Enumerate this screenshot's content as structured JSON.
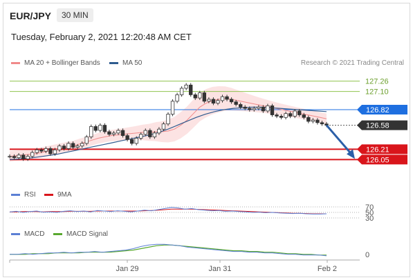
{
  "header": {
    "symbol": "EUR/JPY",
    "timeframe": "30 MIN",
    "datetime": "Tuesday, February 2, 2021 12:20:48 AM CET"
  },
  "legend": {
    "ma20_bb": "MA 20 + Bollinger Bands",
    "ma50": "MA 50",
    "credit": "Research © 2021 Trading Central"
  },
  "colors": {
    "bollinger": "#f08a8a",
    "ma50": "#2f5b8f",
    "resistance": "#8fc24d",
    "support": "#d9151b",
    "pivot": "#1e6fe0",
    "last": "#333333",
    "rsi": "#5b7fd4",
    "rsi_ma": "#d9151b",
    "macd": "#5b7fd4",
    "macd_signal": "#58a82e",
    "arrow": "#2b5fa8"
  },
  "chart_data": [
    {
      "type": "line",
      "title": "EUR/JPY 30 MIN",
      "x_ticks": [
        "Jan 29",
        "Jan 31",
        "Feb 2"
      ],
      "ylim": [
        125.98,
        127.32
      ],
      "levels": [
        {
          "label": "127.26",
          "value": 127.26,
          "kind": "resistance"
        },
        {
          "label": "127.10",
          "value": 127.1,
          "kind": "resistance"
        },
        {
          "label": "126.82",
          "value": 126.82,
          "kind": "pivot"
        },
        {
          "label": "126.58",
          "value": 126.58,
          "kind": "last"
        },
        {
          "label": "126.21",
          "value": 126.21,
          "kind": "support"
        },
        {
          "label": "126.05",
          "value": 126.05,
          "kind": "support"
        }
      ],
      "series": [
        {
          "name": "EUR/JPY",
          "values": [
            126.1,
            126.08,
            126.12,
            126.06,
            126.1,
            126.16,
            126.2,
            126.18,
            126.22,
            126.14,
            126.2,
            126.26,
            126.22,
            126.3,
            126.24,
            126.26,
            126.3,
            126.4,
            126.56,
            126.5,
            126.58,
            126.48,
            126.44,
            126.46,
            126.5,
            126.42,
            126.36,
            126.3,
            126.38,
            126.44,
            126.5,
            126.4,
            126.46,
            126.52,
            126.6,
            126.75,
            126.95,
            127.05,
            127.15,
            127.2,
            127.05,
            127.0,
            127.08,
            126.95,
            126.98,
            126.92,
            126.96,
            127.02,
            126.98,
            126.94,
            126.9,
            126.86,
            126.84,
            126.82,
            126.84,
            126.86,
            126.8,
            126.88,
            126.74,
            126.72,
            126.7,
            126.76,
            126.72,
            126.8,
            126.74,
            126.7,
            126.64,
            126.66,
            126.62,
            126.6,
            126.58
          ]
        },
        {
          "name": "MA 20 + Bollinger Bands",
          "values": [
            126.1,
            126.11,
            126.12,
            126.13,
            126.14,
            126.16,
            126.18,
            126.2,
            126.22,
            126.24,
            126.26,
            126.29,
            126.32,
            126.35,
            126.38,
            126.4,
            126.42,
            126.43,
            126.44,
            126.45,
            126.46,
            126.47,
            126.47,
            126.48,
            126.48,
            126.49,
            126.52,
            126.58,
            126.66,
            126.76,
            126.86,
            126.92,
            126.96,
            126.98,
            126.99,
            126.98,
            126.96,
            126.94,
            126.92,
            126.9,
            126.88,
            126.86,
            126.84,
            126.82,
            126.8,
            126.78,
            126.76,
            126.74,
            126.72,
            126.7,
            126.68
          ]
        },
        {
          "name": "MA 50",
          "values": [
            126.05,
            126.06,
            126.07,
            126.09,
            126.11,
            126.13,
            126.16,
            126.19,
            126.22,
            126.25,
            126.28,
            126.31,
            126.34,
            126.37,
            126.4,
            126.43,
            126.47,
            126.52,
            126.58,
            126.64,
            126.7,
            126.75,
            126.79,
            126.82,
            126.84,
            126.85,
            126.86,
            126.86,
            126.85,
            126.84,
            126.83,
            126.82,
            126.81,
            126.8,
            126.79
          ]
        }
      ]
    },
    {
      "type": "line",
      "legend": [
        "RSI",
        "9MA"
      ],
      "y_ticks": [
        70,
        50,
        30
      ],
      "ylim": [
        20,
        80
      ],
      "series": [
        {
          "name": "RSI",
          "values": [
            52,
            54,
            50,
            53,
            55,
            51,
            52,
            50,
            54,
            56,
            53,
            55,
            52,
            57,
            55,
            53,
            56,
            54,
            52,
            55,
            58,
            56,
            60,
            64,
            68,
            66,
            62,
            64,
            60,
            58,
            56,
            57,
            54,
            55,
            53,
            52,
            50,
            51,
            49,
            50,
            48,
            47,
            46,
            47,
            45,
            44,
            44,
            45
          ]
        },
        {
          "name": "9MA",
          "values": [
            52,
            52,
            53,
            53,
            53,
            52,
            53,
            53,
            53,
            54,
            54,
            54,
            54,
            55,
            55,
            55,
            55,
            55,
            55,
            55,
            56,
            57,
            58,
            60,
            62,
            62,
            62,
            62,
            61,
            60,
            59,
            58,
            57,
            56,
            55,
            54,
            53,
            52,
            51,
            50,
            49,
            48,
            47,
            47,
            46,
            45,
            45,
            45
          ]
        }
      ]
    },
    {
      "type": "line",
      "legend": [
        "MACD",
        "MACD Signal"
      ],
      "y_ticks": [
        0
      ],
      "ylim": [
        -0.05,
        0.2
      ],
      "series": [
        {
          "name": "MACD",
          "values": [
            0.0,
            0.0,
            0.01,
            0.0,
            0.01,
            0.02,
            0.02,
            0.03,
            0.02,
            0.03,
            0.03,
            0.04,
            0.03,
            0.04,
            0.05,
            0.06,
            0.08,
            0.11,
            0.13,
            0.14,
            0.14,
            0.13,
            0.12,
            0.1,
            0.09,
            0.08,
            0.07,
            0.06,
            0.05,
            0.04,
            0.04,
            0.03,
            0.03,
            0.02,
            0.02,
            0.01,
            0.0,
            0.0,
            -0.01,
            -0.01,
            -0.01,
            -0.02
          ]
        },
        {
          "name": "MACD Signal",
          "values": [
            0.0,
            0.0,
            0.0,
            0.01,
            0.01,
            0.01,
            0.02,
            0.02,
            0.02,
            0.02,
            0.03,
            0.03,
            0.03,
            0.03,
            0.04,
            0.05,
            0.06,
            0.08,
            0.1,
            0.12,
            0.13,
            0.13,
            0.12,
            0.11,
            0.1,
            0.09,
            0.08,
            0.07,
            0.06,
            0.05,
            0.05,
            0.04,
            0.04,
            0.03,
            0.03,
            0.02,
            0.01,
            0.01,
            0.0,
            0.0,
            -0.01,
            -0.01
          ]
        }
      ]
    }
  ]
}
